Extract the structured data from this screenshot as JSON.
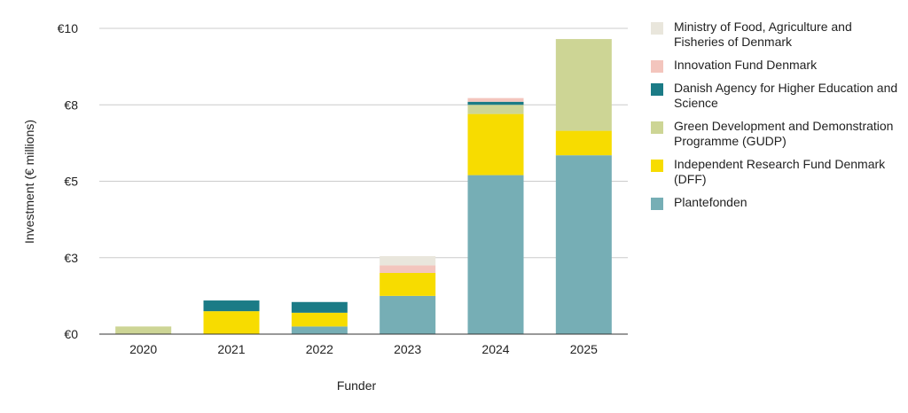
{
  "chart_data": {
    "type": "bar",
    "stacked": true,
    "xlabel": "Funder",
    "ylabel": "Investment (€ millions)",
    "categories": [
      "2020",
      "2021",
      "2022",
      "2023",
      "2024",
      "2025"
    ],
    "y_ticks": [
      {
        "value": 0,
        "label": "€0"
      },
      {
        "value": 2.5,
        "label": "€3"
      },
      {
        "value": 5,
        "label": "€5"
      },
      {
        "value": 7.5,
        "label": "€8"
      },
      {
        "value": 10,
        "label": "€10"
      }
    ],
    "ylim": [
      0,
      10
    ],
    "grid": true,
    "legend_position": "right",
    "series": [
      {
        "name": "Plantefonden",
        "color": "#76aeb5",
        "values": [
          0,
          0,
          0.25,
          1.25,
          5.2,
          5.85
        ]
      },
      {
        "name": "Independent Research Fund Denmark (DFF)",
        "color": "#f7dc00",
        "values": [
          0,
          0.75,
          0.45,
          0.75,
          2.0,
          0.8
        ]
      },
      {
        "name": "Green Development and Demonstration Programme (GUDP)",
        "color": "#cdd595",
        "values": [
          0.25,
          0,
          0,
          0,
          0.3,
          3.0
        ]
      },
      {
        "name": "Danish Agency for Higher Education and Science",
        "color": "#1b7b86",
        "values": [
          0,
          0.35,
          0.35,
          0,
          0.1,
          0
        ]
      },
      {
        "name": "Innovation Fund Denmark",
        "color": "#f3c5bd",
        "values": [
          0,
          0,
          0,
          0.25,
          0.12,
          0
        ]
      },
      {
        "name": "Ministry of Food, Agriculture and Fisheries of Denmark",
        "color": "#e9e6dc",
        "values": [
          0,
          0,
          0,
          0.3,
          0,
          0
        ]
      }
    ]
  }
}
